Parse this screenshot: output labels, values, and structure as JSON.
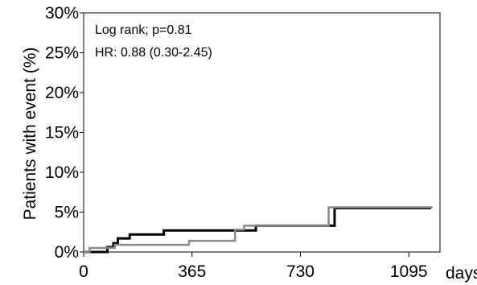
{
  "chart_data": {
    "type": "line",
    "title": "",
    "xlabel": "days",
    "ylabel": "Patients with event (%)",
    "xlim": [
      0,
      1200
    ],
    "ylim": [
      0,
      30
    ],
    "x_ticks": [
      0,
      365,
      730,
      1095
    ],
    "x_tick_labels": [
      "0",
      "365",
      "730",
      "1095"
    ],
    "y_ticks": [
      0,
      5,
      10,
      15,
      20,
      25,
      30
    ],
    "y_tick_labels": [
      "0%",
      "5%",
      "10%",
      "15%",
      "20%",
      "25%",
      "30%"
    ],
    "grid": false,
    "annotations": [
      "Log rank; p=0.81",
      "HR: 0.88 (0.30-2.45)"
    ],
    "series": [
      {
        "color": "#000000",
        "step": true,
        "points": [
          [
            0,
            0
          ],
          [
            80,
            0.6
          ],
          [
            100,
            1.1
          ],
          [
            115,
            1.7
          ],
          [
            155,
            2.2
          ],
          [
            265,
            2.2
          ],
          [
            270,
            2.7
          ],
          [
            575,
            2.7
          ],
          [
            580,
            3.3
          ],
          [
            840,
            3.3
          ],
          [
            845,
            5.5
          ],
          [
            1170,
            5.5
          ]
        ]
      },
      {
        "color": "#8a8a8a",
        "step": true,
        "points": [
          [
            0,
            0
          ],
          [
            20,
            0.5
          ],
          [
            100,
            0.5
          ],
          [
            105,
            0.9
          ],
          [
            350,
            0.9
          ],
          [
            355,
            1.4
          ],
          [
            505,
            1.4
          ],
          [
            510,
            2.8
          ],
          [
            540,
            3.3
          ],
          [
            820,
            3.3
          ],
          [
            825,
            5.6
          ],
          [
            1175,
            5.6
          ]
        ]
      }
    ]
  }
}
